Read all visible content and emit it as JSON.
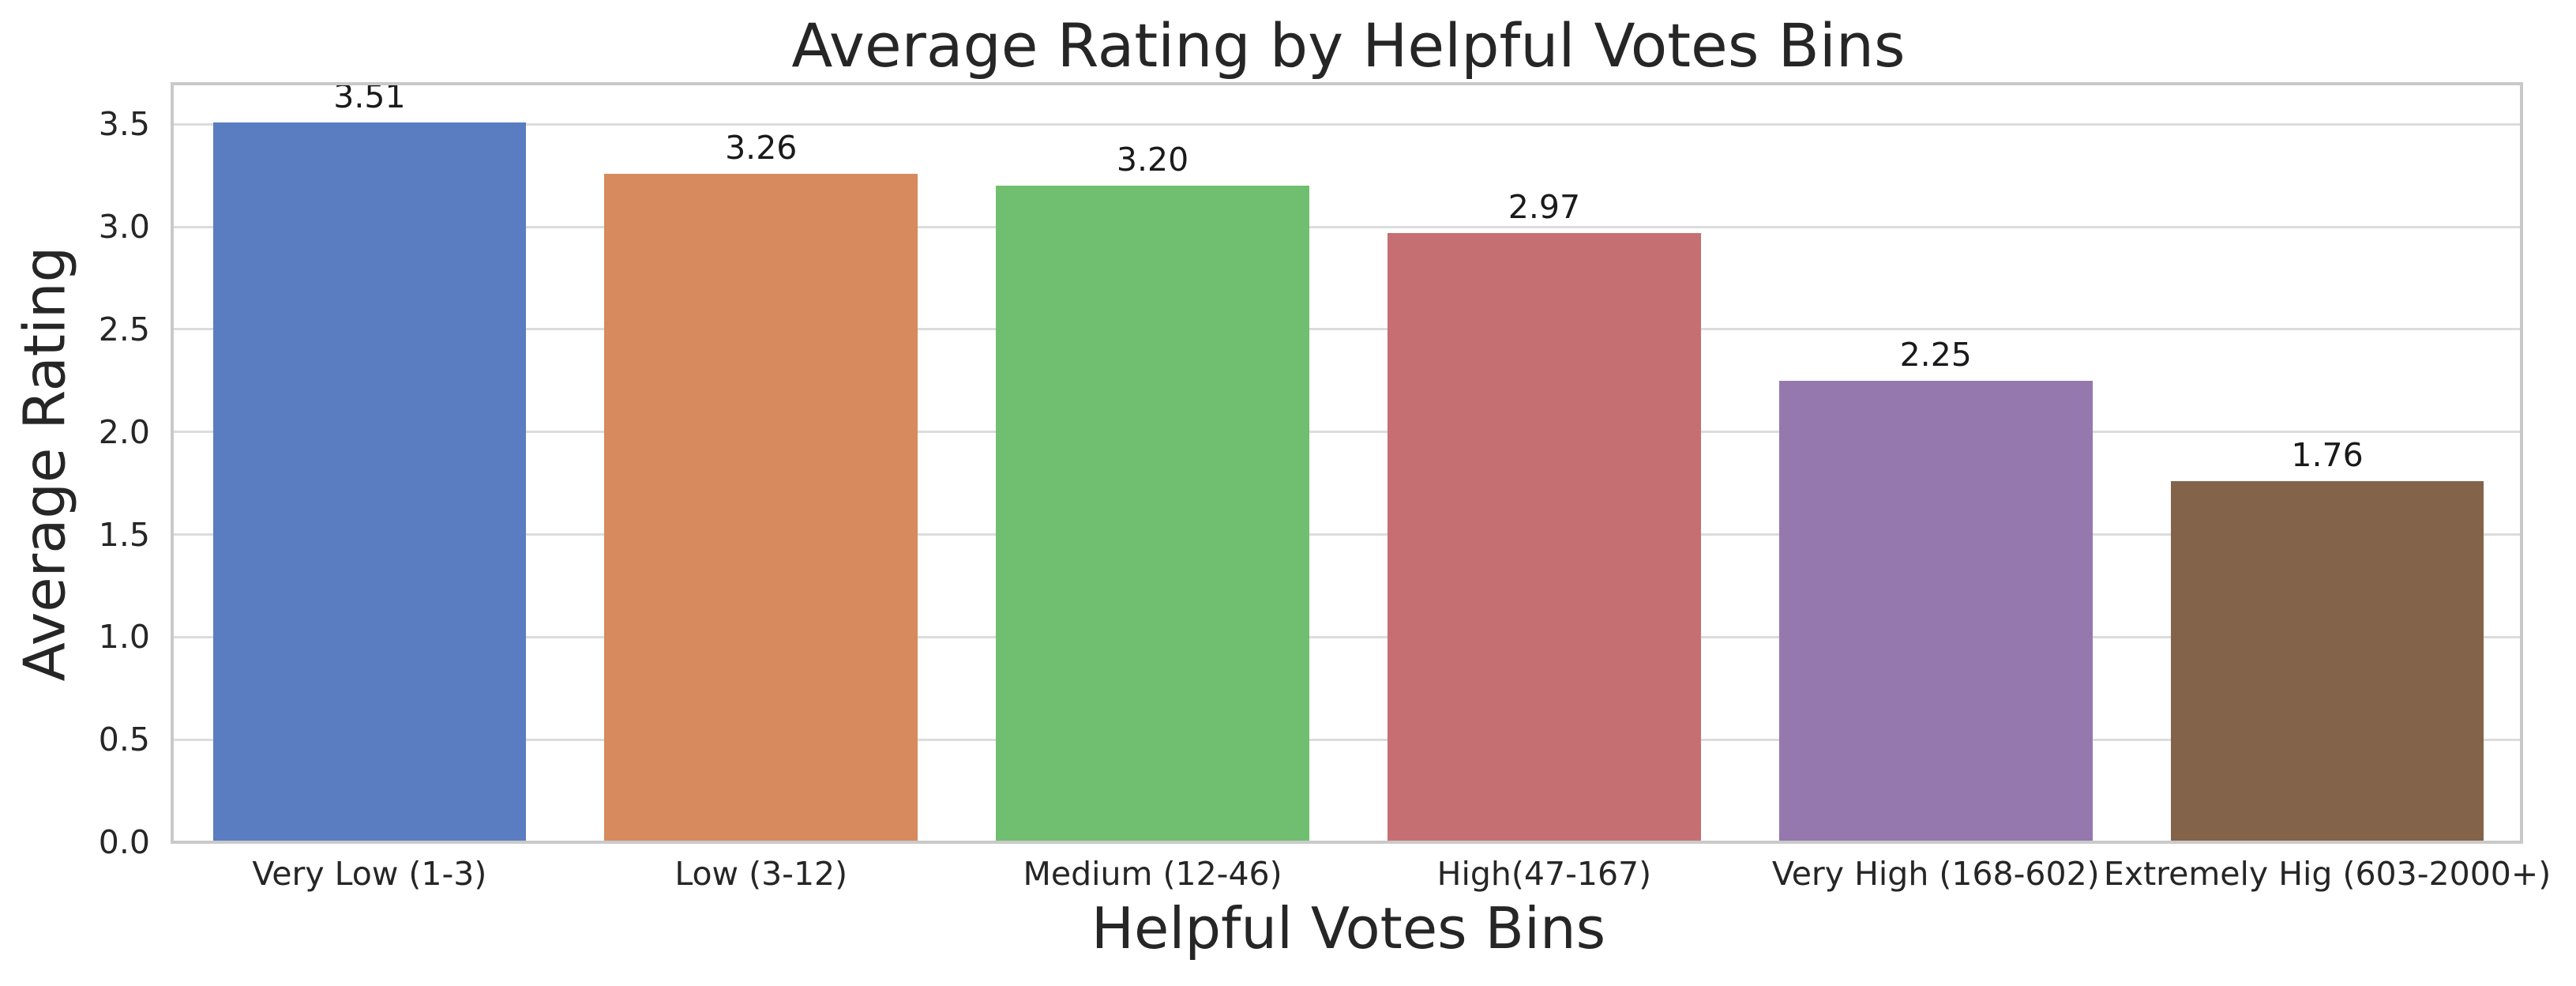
{
  "chart_data": {
    "type": "bar",
    "title": "Average Rating by Helpful Votes Bins",
    "xlabel": "Helpful Votes Bins",
    "ylabel": "Average Rating",
    "categories": [
      "Very Low (1-3)",
      "Low (3-12)",
      "Medium (12-46)",
      "High(47-167)",
      "Very High (168-602)",
      "Extremely Hig (603-2000+)"
    ],
    "values": [
      3.51,
      3.26,
      3.2,
      2.97,
      2.25,
      1.76
    ],
    "bar_value_labels": [
      "3.51",
      "3.26",
      "3.20",
      "2.97",
      "2.25",
      "1.76"
    ],
    "bar_colors": [
      "#5A7CC1",
      "#D78A5D",
      "#70BE70",
      "#C66F72",
      "#9478AE",
      "#83634A"
    ],
    "yticks": [
      0.0,
      0.5,
      1.0,
      1.5,
      2.0,
      2.5,
      3.0,
      3.5
    ],
    "ytick_labels": [
      "0.0",
      "0.5",
      "1.0",
      "1.5",
      "2.0",
      "2.5",
      "3.0",
      "3.5"
    ],
    "ylim": [
      0,
      3.69
    ],
    "bar_width_fraction": 0.8,
    "grid": "horizontal-on",
    "legend": "none",
    "colors": {
      "background": "#ffffff",
      "text": "#262626",
      "spine": "#c9c9c9",
      "gridline": "#dcdcdc"
    }
  }
}
